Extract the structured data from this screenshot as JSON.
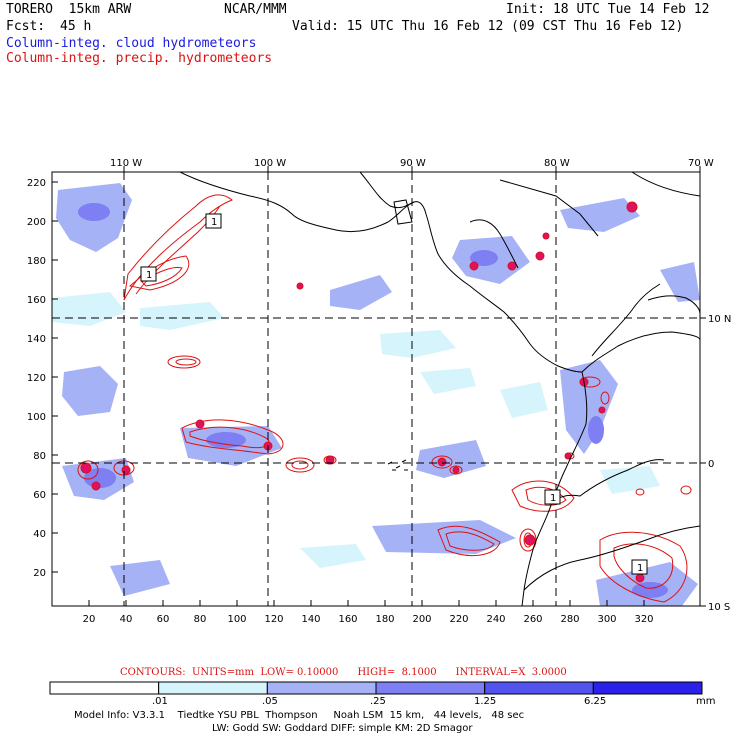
{
  "header": {
    "model": "TORERO  15km ARW",
    "org": "NCAR/MMM",
    "init": "Init: 18 UTC Tue 14 Feb 12",
    "fcst_label": "Fcst:",
    "fcst_value": "45 h",
    "valid": "Valid: 15 UTC Thu 16 Feb 12 (09 CST Thu 16 Feb 12)",
    "field1": "Column-integ. cloud hydrometeors",
    "field2": "Column-integ. precip. hydrometeors"
  },
  "map": {
    "top_lon_labels": [
      "110 W",
      "100 W",
      "90 W",
      "80 W",
      "70 W"
    ],
    "left_grid_labels": [
      "220",
      "200",
      "180",
      "160",
      "140",
      "120",
      "100",
      "80",
      "60",
      "40",
      "20"
    ],
    "bottom_grid_labels": [
      "20",
      "40",
      "60",
      "80",
      "100",
      "120",
      "140",
      "160",
      "180",
      "200",
      "220",
      "240",
      "260",
      "280",
      "300",
      "320"
    ],
    "right_lat_labels": [
      "10 N",
      "0",
      "10 S"
    ],
    "contour_box_labels": [
      "1",
      "1",
      "1",
      "1"
    ]
  },
  "colorbar": {
    "colors": [
      "#ffffff",
      "#d6f4fb",
      "#a6b2f6",
      "#7d7ff2",
      "#5252ee",
      "#2a22ea"
    ],
    "tick_labels": [
      ".01",
      ".05",
      ".25",
      "1.25",
      "6.25"
    ],
    "units": "mm"
  },
  "contour_info": {
    "text": "CONTOURS:  UNITS=mm  LOW= 0.10000      HIGH=  8.1000      INTERVAL=X  3.0000"
  },
  "model_info": {
    "line1": "Model Info: V3.3.1    Tiedtke YSU PBL  Thompson     Noah LSM  15 km,   44 levels,   48 sec",
    "line2": "LW: Godd SW: Goddard DIFF: simple KM: 2D Smagor"
  }
}
